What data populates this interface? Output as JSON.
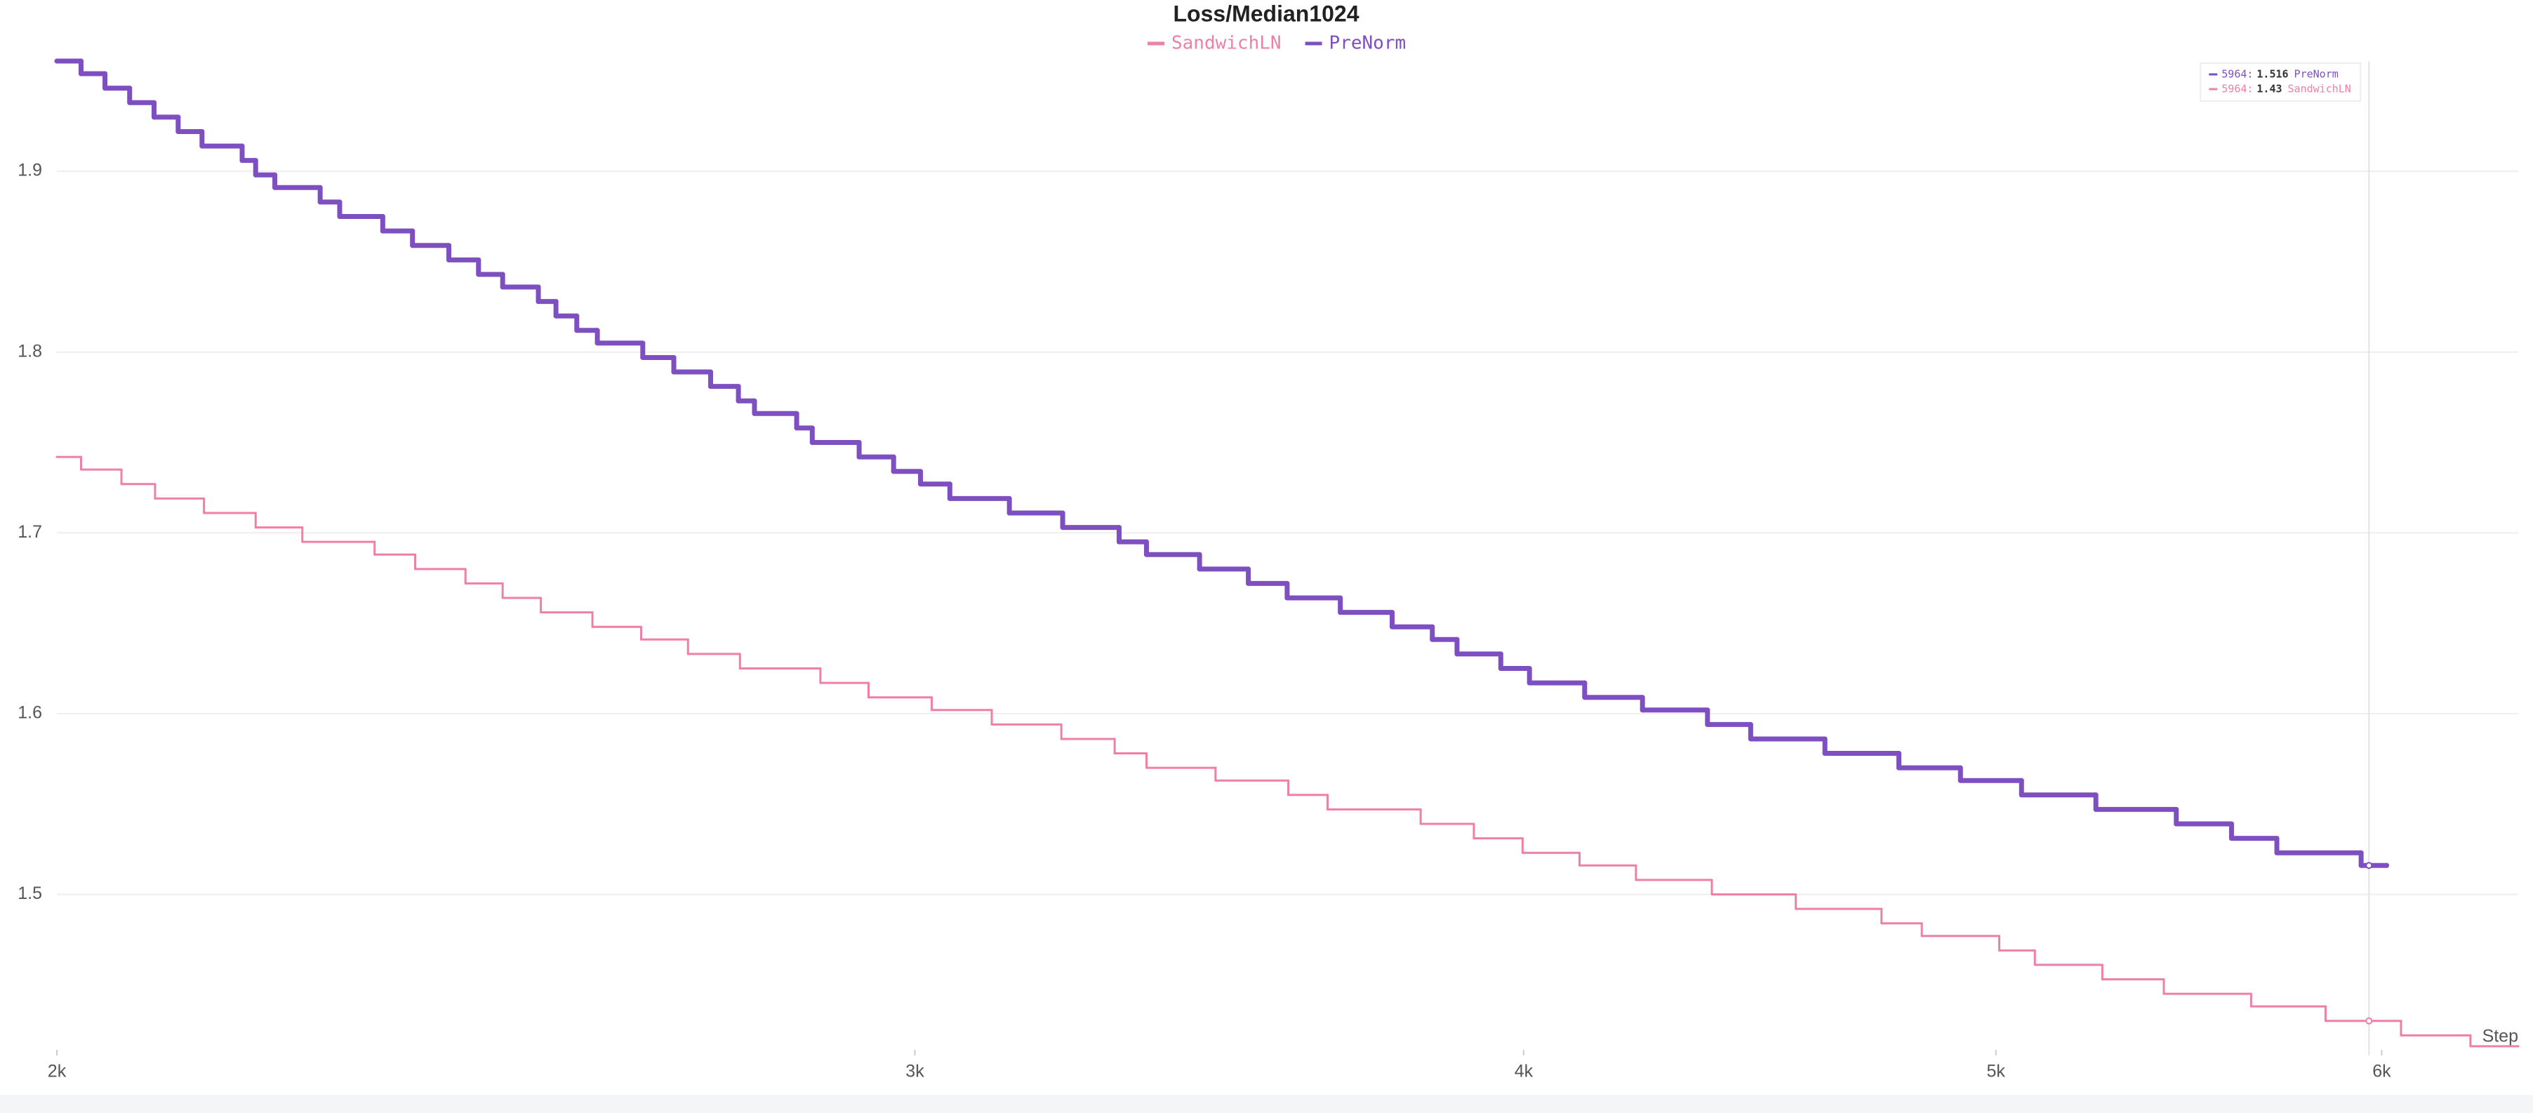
{
  "chart_data": {
    "type": "line",
    "title": "Loss/Median1024",
    "x_label": "Step",
    "xscale": "log",
    "line_shape": "hv",
    "grid": true,
    "legend_position": "top",
    "xlim": [
      2000,
      6400
    ],
    "ylim": [
      1.414,
      1.961
    ],
    "xticks": [
      {
        "value": 2000,
        "label": "2k"
      },
      {
        "value": 3000,
        "label": "3k"
      },
      {
        "value": 4000,
        "label": "4k"
      },
      {
        "value": 5000,
        "label": "5k"
      },
      {
        "value": 6000,
        "label": "6k"
      }
    ],
    "yticks": [
      1.5,
      1.6,
      1.7,
      1.8,
      1.9
    ],
    "series": [
      {
        "name": "SandwichLN",
        "color": "#f07fa8",
        "width": 3,
        "x": [
          2000,
          2023,
          2062,
          2095,
          2144,
          2197,
          2246,
          2324,
          2369,
          2426,
          2469,
          2514,
          2576,
          2636,
          2695,
          2762,
          2869,
          2935,
          3024,
          3111,
          3215,
          3297,
          3347,
          3458,
          3579,
          3646,
          3810,
          3907,
          3998,
          4107,
          4218,
          4372,
          4549,
          4737,
          4828,
          5008,
          5093,
          5258,
          5413,
          5641,
          5843,
          6055,
          6257,
          6400
        ],
        "values": [
          1.742,
          1.735,
          1.727,
          1.719,
          1.711,
          1.703,
          1.695,
          1.688,
          1.68,
          1.672,
          1.664,
          1.656,
          1.648,
          1.641,
          1.633,
          1.625,
          1.617,
          1.609,
          1.602,
          1.594,
          1.586,
          1.578,
          1.57,
          1.563,
          1.555,
          1.547,
          1.539,
          1.531,
          1.523,
          1.516,
          1.508,
          1.5,
          1.492,
          1.484,
          1.477,
          1.469,
          1.461,
          1.453,
          1.445,
          1.438,
          1.43,
          1.422,
          1.416,
          1.416
        ]
      },
      {
        "name": "PreNorm",
        "color": "#7e4fc0",
        "width": 7,
        "x": [
          2000,
          2023,
          2046,
          2070,
          2094,
          2118,
          2142,
          2183,
          2197,
          2217,
          2265,
          2286,
          2333,
          2366,
          2407,
          2441,
          2469,
          2511,
          2532,
          2557,
          2582,
          2638,
          2677,
          2724,
          2760,
          2781,
          2837,
          2858,
          2922,
          2970,
          3008,
          3050,
          3137,
          3217,
          3304,
          3347,
          3432,
          3512,
          3577,
          3668,
          3759,
          3831,
          3876,
          3957,
          4011,
          4117,
          4231,
          4363,
          4453,
          4612,
          4776,
          4917,
          5061,
          5242,
          5445,
          5589,
          5710,
          5942,
          6014
        ],
        "values": [
          1.961,
          1.954,
          1.946,
          1.938,
          1.93,
          1.922,
          1.914,
          1.906,
          1.898,
          1.891,
          1.883,
          1.875,
          1.867,
          1.859,
          1.851,
          1.843,
          1.836,
          1.828,
          1.82,
          1.812,
          1.805,
          1.797,
          1.789,
          1.781,
          1.773,
          1.766,
          1.758,
          1.75,
          1.742,
          1.734,
          1.727,
          1.719,
          1.711,
          1.703,
          1.695,
          1.688,
          1.68,
          1.672,
          1.664,
          1.656,
          1.648,
          1.641,
          1.633,
          1.625,
          1.617,
          1.609,
          1.602,
          1.594,
          1.586,
          1.578,
          1.57,
          1.563,
          1.555,
          1.547,
          1.539,
          1.531,
          1.523,
          1.516,
          1.516
        ]
      }
    ],
    "tooltip": [
      {
        "step": 5964,
        "value": 1.516,
        "name": "PreNorm",
        "series": 1
      },
      {
        "step": 5964,
        "value": 1.43,
        "name": "SandwichLN",
        "series": 0
      }
    ]
  }
}
